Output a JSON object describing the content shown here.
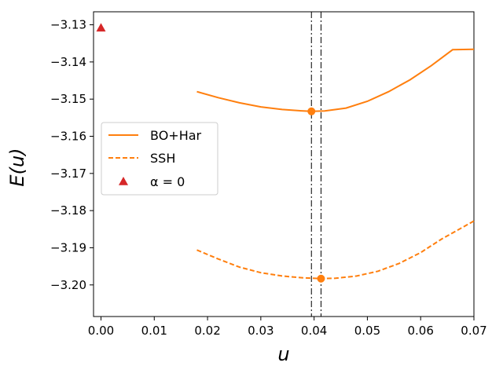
{
  "chart_data": {
    "type": "line",
    "title": "",
    "xlabel": "u",
    "ylabel": "E(u)",
    "xlim": [
      -0.0014,
      0.07
    ],
    "ylim": [
      -3.2085,
      -3.1265
    ],
    "x_ticks": [
      0.0,
      0.01,
      0.02,
      0.03,
      0.04,
      0.05,
      0.06,
      0.07
    ],
    "x_tick_labels": [
      "0.00",
      "0.01",
      "0.02",
      "0.03",
      "0.04",
      "0.05",
      "0.06",
      "0.07"
    ],
    "y_ticks": [
      -3.13,
      -3.14,
      -3.15,
      -3.16,
      -3.17,
      -3.18,
      -3.19,
      -3.2
    ],
    "y_tick_labels": [
      "−3.13",
      "−3.14",
      "−3.15",
      "−3.16",
      "−3.17",
      "−3.18",
      "−3.19",
      "−3.20"
    ],
    "grid": false,
    "legend_position": "center-left",
    "colors": {
      "orange": "#ff7f0e",
      "red": "#d62728",
      "black": "#000000"
    },
    "series": [
      {
        "name": "BO+Har",
        "style": "solid",
        "color": "#ff7f0e",
        "x": [
          0.018,
          0.022,
          0.026,
          0.03,
          0.034,
          0.038,
          0.0395,
          0.042,
          0.046,
          0.05,
          0.054,
          0.058,
          0.062,
          0.066,
          0.07
        ],
        "y": [
          -3.148,
          -3.1496,
          -3.151,
          -3.1521,
          -3.1528,
          -3.1532,
          -3.1533,
          -3.1532,
          -3.1524,
          -3.1506,
          -3.148,
          -3.1448,
          -3.141,
          -3.1367,
          -3.1366
        ]
      },
      {
        "name": "SSH",
        "style": "dashed",
        "color": "#ff7f0e",
        "x": [
          0.018,
          0.022,
          0.026,
          0.03,
          0.034,
          0.038,
          0.0413,
          0.044,
          0.048,
          0.052,
          0.056,
          0.06,
          0.064,
          0.07
        ],
        "y": [
          -3.1906,
          -3.193,
          -3.1952,
          -3.1967,
          -3.1976,
          -3.1981,
          -3.1983,
          -3.1982,
          -3.1976,
          -3.1963,
          -3.1942,
          -3.1913,
          -3.1876,
          -3.1828
        ]
      },
      {
        "name": "α = 0",
        "style": "marker-triangle",
        "color": "#d62728",
        "x": [
          0.0
        ],
        "y": [
          -3.1308
        ]
      }
    ],
    "minima": [
      {
        "x": 0.0395,
        "y": -3.1533
      },
      {
        "x": 0.0413,
        "y": -3.1983
      }
    ],
    "vertical_lines": [
      0.0395,
      0.0413
    ]
  },
  "legend": {
    "items": [
      {
        "label": "BO+Har"
      },
      {
        "label": "SSH"
      },
      {
        "label": "α = 0"
      }
    ]
  }
}
